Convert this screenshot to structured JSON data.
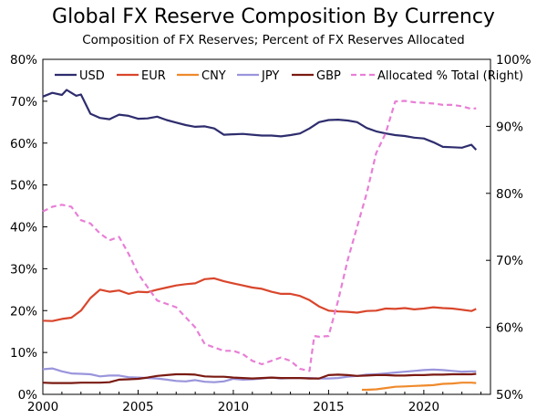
{
  "chart_data": {
    "type": "line",
    "title": "Global FX Reserve Composition By Currency",
    "subtitle": "Composition of FX Reserves; Percent of FX Reserves Allocated",
    "xlim": [
      2000,
      2023.5
    ],
    "x_ticks": [
      2000,
      2005,
      2010,
      2015,
      2020
    ],
    "x_tick_labels": [
      "2000",
      "2005",
      "2010",
      "2015",
      "2020"
    ],
    "ylim_left": [
      0,
      80
    ],
    "y_ticks_left": [
      0,
      10,
      20,
      30,
      40,
      50,
      60,
      70,
      80
    ],
    "y_tick_labels_left": [
      "0%",
      "10%",
      "20%",
      "30%",
      "40%",
      "50%",
      "60%",
      "70%",
      "80%"
    ],
    "ylim_right": [
      50,
      100
    ],
    "y_ticks_right": [
      50,
      60,
      70,
      80,
      90,
      100
    ],
    "y_tick_labels_right": [
      "50%",
      "60%",
      "70%",
      "80%",
      "90%",
      "100%"
    ],
    "grid": false,
    "legend": "top",
    "series": [
      {
        "name": "USD",
        "axis": "left",
        "color": "#2e2d6e",
        "dash": false,
        "x": [
          2000,
          2000.5,
          2001,
          2001.25,
          2001.5,
          2001.75,
          2002,
          2002.5,
          2003,
          2003.5,
          2004,
          2004.5,
          2005,
          2005.5,
          2006,
          2006.5,
          2007,
          2007.5,
          2008,
          2008.5,
          2009,
          2009.5,
          2010,
          2010.5,
          2011,
          2011.5,
          2012,
          2012.5,
          2013,
          2013.5,
          2014,
          2014.5,
          2015,
          2015.5,
          2016,
          2016.5,
          2017,
          2017.5,
          2018,
          2018.5,
          2019,
          2019.5,
          2020,
          2020.5,
          2021,
          2021.5,
          2022,
          2022.5,
          2022.75
        ],
        "y": [
          71.1,
          72.0,
          71.5,
          72.7,
          72.0,
          71.3,
          71.6,
          67.0,
          66.0,
          65.7,
          66.8,
          66.5,
          65.8,
          65.9,
          66.3,
          65.5,
          64.9,
          64.3,
          63.9,
          64.0,
          63.5,
          62.0,
          62.1,
          62.2,
          62.0,
          61.8,
          61.8,
          61.6,
          61.9,
          62.3,
          63.5,
          65.0,
          65.5,
          65.6,
          65.4,
          65.0,
          63.6,
          62.8,
          62.3,
          61.9,
          61.7,
          61.3,
          61.1,
          60.2,
          59.1,
          59.0,
          58.9,
          59.6,
          58.4
        ]
      },
      {
        "name": "EUR",
        "axis": "left",
        "color": "#d9462c",
        "dash": false,
        "x": [
          2000,
          2000.5,
          2001,
          2001.5,
          2002,
          2002.5,
          2003,
          2003.5,
          2004,
          2004.5,
          2005,
          2005.5,
          2006,
          2006.5,
          2007,
          2007.5,
          2008,
          2008.5,
          2009,
          2009.5,
          2010,
          2010.5,
          2011,
          2011.5,
          2012,
          2012.5,
          2013,
          2013.5,
          2014,
          2014.5,
          2015,
          2015.5,
          2016,
          2016.5,
          2017,
          2017.5,
          2018,
          2018.5,
          2019,
          2019.5,
          2020,
          2020.5,
          2021,
          2021.5,
          2022,
          2022.5,
          2022.75
        ],
        "y": [
          17.6,
          17.5,
          18.0,
          18.3,
          20.0,
          23.0,
          25.0,
          24.5,
          24.8,
          24.0,
          24.5,
          24.4,
          25.0,
          25.5,
          26.0,
          26.3,
          26.5,
          27.5,
          27.7,
          27.0,
          26.5,
          26.0,
          25.5,
          25.2,
          24.5,
          24.0,
          24.0,
          23.5,
          22.5,
          21.0,
          20.0,
          19.8,
          19.7,
          19.5,
          19.9,
          20.0,
          20.5,
          20.4,
          20.6,
          20.3,
          20.5,
          20.8,
          20.6,
          20.5,
          20.2,
          19.9,
          20.4
        ]
      },
      {
        "name": "CNY",
        "axis": "left",
        "color": "#ef8a2c",
        "dash": false,
        "x": [
          2016.75,
          2017,
          2017.5,
          2018,
          2018.5,
          2019,
          2019.5,
          2020,
          2020.5,
          2021,
          2021.5,
          2022,
          2022.5,
          2022.75
        ],
        "y": [
          1.1,
          1.1,
          1.2,
          1.5,
          1.8,
          1.9,
          2.0,
          2.1,
          2.2,
          2.5,
          2.6,
          2.8,
          2.8,
          2.7
        ]
      },
      {
        "name": "JPY",
        "axis": "left",
        "color": "#9a95dc",
        "dash": false,
        "x": [
          2000,
          2000.5,
          2001,
          2001.5,
          2002,
          2002.5,
          2003,
          2003.5,
          2004,
          2004.5,
          2005,
          2005.5,
          2006,
          2006.5,
          2007,
          2007.5,
          2008,
          2008.5,
          2009,
          2009.5,
          2010,
          2010.5,
          2011,
          2011.5,
          2012,
          2012.5,
          2013,
          2013.5,
          2014,
          2014.5,
          2015,
          2015.5,
          2016,
          2016.5,
          2017,
          2017.5,
          2018,
          2018.5,
          2019,
          2019.5,
          2020,
          2020.5,
          2021,
          2021.5,
          2022,
          2022.5,
          2022.75
        ],
        "y": [
          6.0,
          6.2,
          5.5,
          5.0,
          4.9,
          4.8,
          4.3,
          4.5,
          4.5,
          4.1,
          4.0,
          3.9,
          3.8,
          3.5,
          3.2,
          3.1,
          3.4,
          3.0,
          2.9,
          3.1,
          3.7,
          3.5,
          3.6,
          3.8,
          4.0,
          3.8,
          3.9,
          3.9,
          3.9,
          3.8,
          3.8,
          3.9,
          4.2,
          4.4,
          4.7,
          4.8,
          5.0,
          5.2,
          5.4,
          5.6,
          5.8,
          5.9,
          5.8,
          5.6,
          5.4,
          5.5,
          5.5
        ]
      },
      {
        "name": "GBP",
        "axis": "left",
        "color": "#7a1a12",
        "dash": false,
        "x": [
          2000,
          2000.5,
          2001,
          2001.5,
          2002,
          2002.5,
          2003,
          2003.5,
          2004,
          2004.5,
          2005,
          2005.5,
          2006,
          2006.5,
          2007,
          2007.5,
          2008,
          2008.5,
          2009,
          2009.5,
          2010,
          2010.5,
          2011,
          2011.5,
          2012,
          2012.5,
          2013,
          2013.5,
          2014,
          2014.5,
          2015,
          2015.5,
          2016,
          2016.5,
          2017,
          2017.5,
          2018,
          2018.5,
          2019,
          2019.5,
          2020,
          2020.5,
          2021,
          2021.5,
          2022,
          2022.5,
          2022.75
        ],
        "y": [
          2.8,
          2.7,
          2.7,
          2.7,
          2.8,
          2.8,
          2.8,
          2.9,
          3.5,
          3.6,
          3.7,
          4.0,
          4.4,
          4.6,
          4.8,
          4.8,
          4.7,
          4.3,
          4.2,
          4.2,
          4.0,
          3.9,
          3.8,
          3.9,
          4.0,
          3.9,
          3.9,
          3.9,
          3.8,
          3.8,
          4.6,
          4.7,
          4.6,
          4.4,
          4.5,
          4.6,
          4.6,
          4.5,
          4.5,
          4.6,
          4.6,
          4.7,
          4.7,
          4.8,
          4.8,
          4.8,
          4.9
        ]
      },
      {
        "name": "Allocated % Total (Right)",
        "axis": "right",
        "color": "#e87fd6",
        "dash": true,
        "x": [
          2000,
          2000.5,
          2001,
          2001.5,
          2002,
          2002.5,
          2003,
          2003.5,
          2004,
          2004.5,
          2005,
          2005.5,
          2006,
          2006.5,
          2007,
          2007.5,
          2008,
          2008.5,
          2009,
          2009.5,
          2010,
          2010.5,
          2011,
          2011.5,
          2012,
          2012.5,
          2013,
          2013.5,
          2014,
          2014.25,
          2014.5,
          2015,
          2015.5,
          2016,
          2016.5,
          2017,
          2017.5,
          2018,
          2018.5,
          2019,
          2019.5,
          2020,
          2020.5,
          2021,
          2021.5,
          2022,
          2022.5,
          2022.75
        ],
        "y": [
          77.3,
          78.0,
          78.3,
          78.0,
          76.0,
          75.5,
          74.0,
          73.0,
          73.5,
          71.0,
          68.0,
          66.0,
          64.0,
          63.5,
          63.0,
          61.5,
          60.0,
          57.5,
          57.0,
          56.5,
          56.5,
          56.0,
          55.0,
          54.5,
          55.0,
          55.5,
          55.0,
          53.8,
          53.5,
          58.7,
          58.6,
          58.7,
          64.0,
          70.0,
          75.0,
          80.0,
          86.0,
          89.0,
          93.7,
          93.8,
          93.6,
          93.5,
          93.4,
          93.2,
          93.2,
          93.0,
          92.6,
          92.7
        ]
      }
    ]
  }
}
